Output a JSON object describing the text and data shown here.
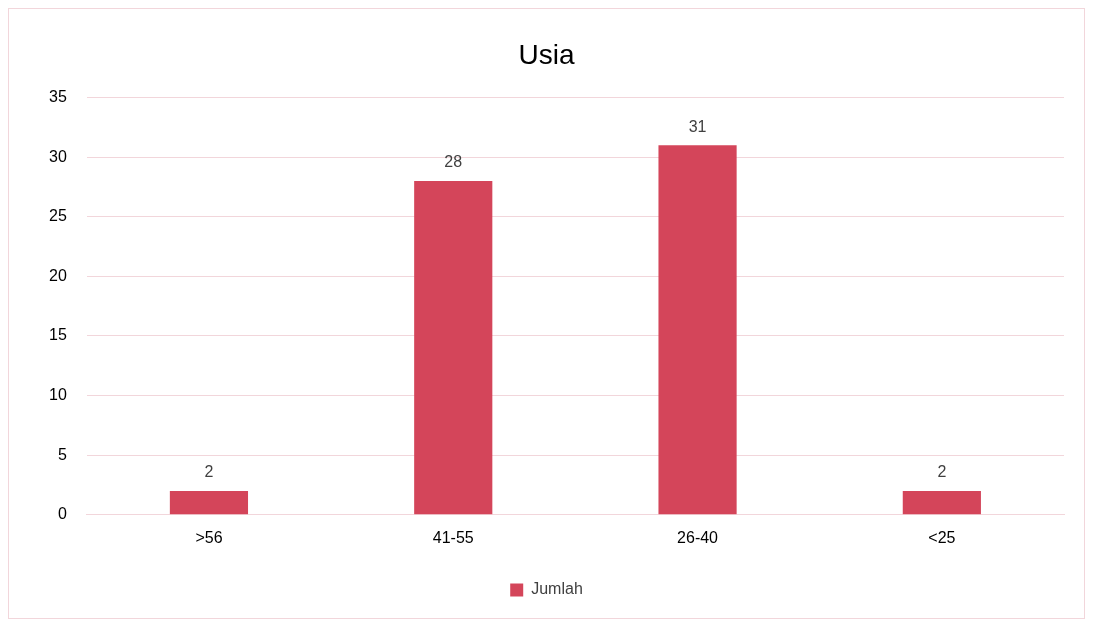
{
  "chart_data": {
    "type": "bar",
    "title": "Usia",
    "categories": [
      ">56",
      "41-55",
      "26-40",
      "<25"
    ],
    "series": [
      {
        "name": "Jumlah",
        "color": "#d4455a",
        "values": [
          2,
          28,
          31,
          2
        ]
      }
    ],
    "ylim": [
      0,
      35
    ],
    "yticks": [
      0,
      5,
      10,
      15,
      20,
      25,
      30,
      35
    ],
    "grid": "y",
    "legend": "bottom",
    "data_labels": true
  }
}
